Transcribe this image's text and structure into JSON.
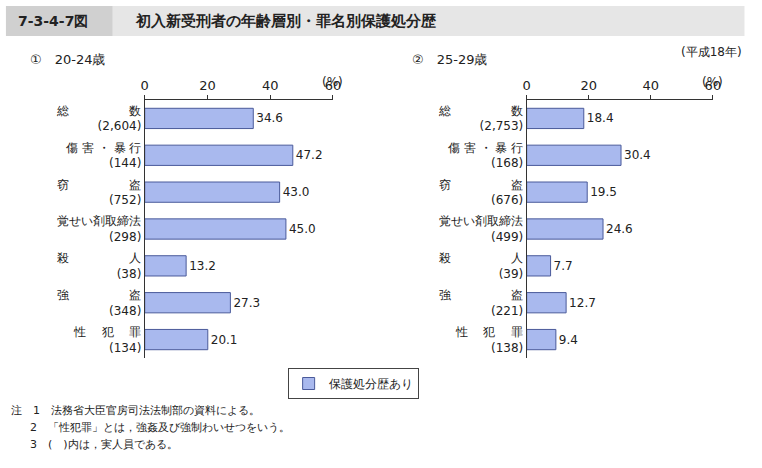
{
  "figure_number": "7-3-4-7図",
  "title": "初入新受刑者の年齢層別・罪名別保護処分歴",
  "subtitle": "(平成18年)",
  "notes": [
    "注　1　法務省大臣官房司法法制部の資料による。",
    "2　「性犯罪」とは，強姦及び強制わいせつをいう。",
    "3　(　)内は，実人員である。"
  ],
  "chart_data": [
    {
      "type": "bar",
      "title": "①　20-24歳",
      "orientation": "horizontal",
      "xlabel": "(%)",
      "categories": [
        "総　　　　　数\n(2,604)",
        "傷 害 ・ 暴 行\n(144)",
        "窃　　　　　盗\n(752)",
        "覚せい剤取締法\n(298)",
        "殺　　　　　人\n(38)",
        "強　　　　　盗\n(348)",
        "性　 犯 　罪\n(134)"
      ],
      "series": [
        {
          "name": "保護処分歴あり",
          "color": "#a9b9ee",
          "values": [
            34.6,
            47.2,
            43.0,
            45.0,
            13.2,
            27.3,
            20.1
          ],
          "value_labels": [
            "34.6",
            "47.2",
            "43.0",
            "45.0",
            "13.2",
            "27.3",
            "20.1"
          ]
        }
      ],
      "xlim": [
        0,
        60
      ],
      "xticks": [
        0,
        20,
        40,
        60
      ],
      "grid": false,
      "data_labels": true,
      "legend": "bottom"
    },
    {
      "type": "bar",
      "title": "②　25-29歳",
      "orientation": "horizontal",
      "xlabel": "(%)",
      "categories": [
        "総　　　　　数\n(2,753)",
        "傷 害 ・ 暴 行\n(168)",
        "窃　　　　　盗\n(676)",
        "覚せい剤取締法\n(499)",
        "殺　　　　　人\n(39)",
        "強　　　　　盗\n(221)",
        "性　 犯 　罪\n(138)"
      ],
      "series": [
        {
          "name": "保護処分歴あり",
          "color": "#a9b9ee",
          "values": [
            18.4,
            30.4,
            19.5,
            24.6,
            7.7,
            12.7,
            9.4
          ],
          "value_labels": [
            "18.4",
            "30.4",
            "19.5",
            "24.6",
            "7.7",
            "12.7",
            "9.4"
          ]
        }
      ],
      "xlim": [
        0,
        60
      ],
      "xticks": [
        0,
        20,
        40,
        60
      ],
      "grid": false,
      "data_labels": true,
      "legend": "bottom"
    }
  ]
}
